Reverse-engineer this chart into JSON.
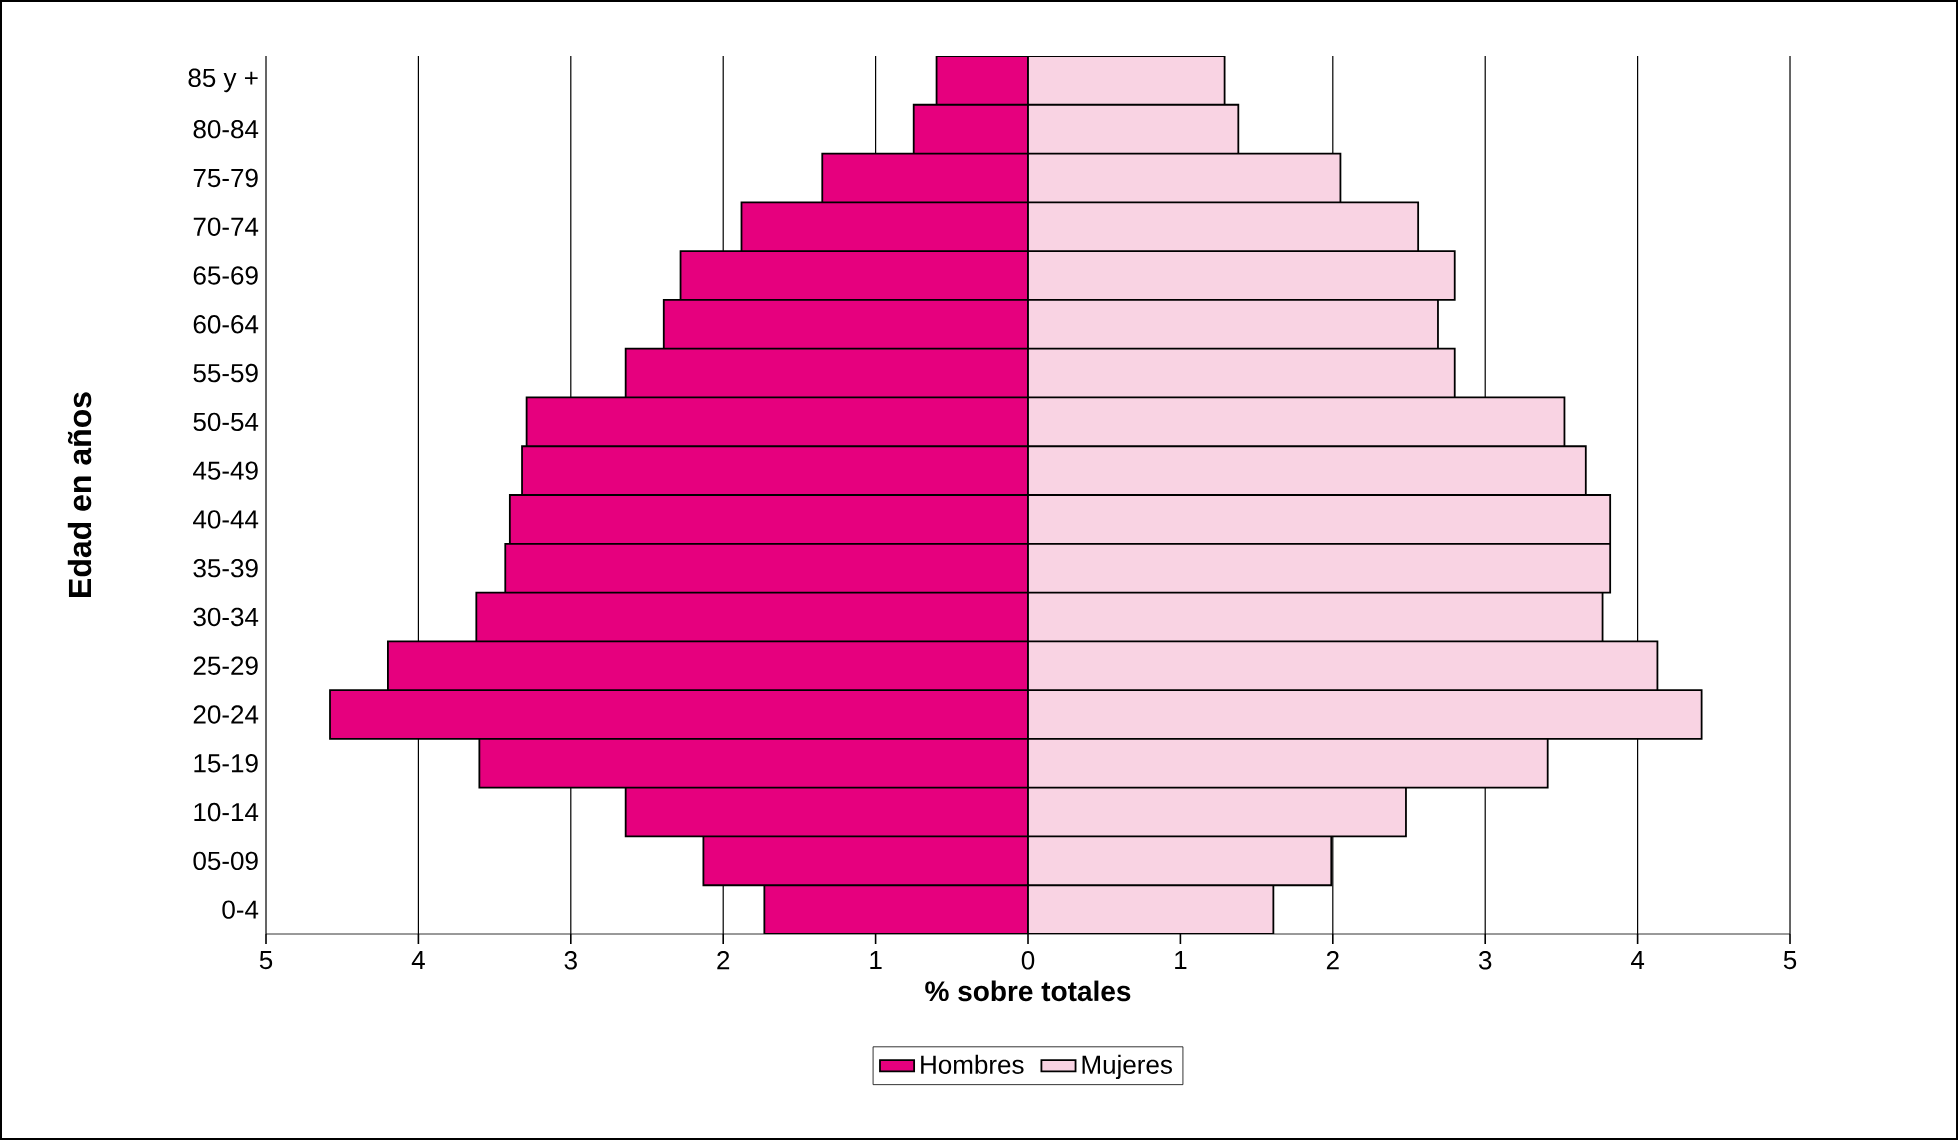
{
  "chart_data": {
    "type": "bar",
    "orientation": "horizontal",
    "ylabel": "Edad en años",
    "xlabel": "% sobre totales",
    "categories": [
      "85 y +",
      "80-84",
      "75-79",
      "70-74",
      "65-69",
      "60-64",
      "55-59",
      "50-54",
      "45-49",
      "40-44",
      "35-39",
      "30-34",
      "25-29",
      "20-24",
      "15-19",
      "10-14",
      "05-09",
      "0-4"
    ],
    "series": [
      {
        "name": "Hombres",
        "color": "#e6007e",
        "values": [
          -0.6,
          -0.75,
          -1.35,
          -1.88,
          -2.28,
          -2.39,
          -2.64,
          -3.29,
          -3.32,
          -3.4,
          -3.43,
          -3.62,
          -4.2,
          -4.58,
          -3.6,
          -2.64,
          -2.13,
          -1.73
        ]
      },
      {
        "name": "Mujeres",
        "color": "#f9d3e3",
        "values": [
          1.29,
          1.38,
          2.05,
          2.56,
          2.8,
          2.69,
          2.8,
          3.52,
          3.66,
          3.82,
          3.82,
          3.77,
          4.13,
          4.42,
          3.41,
          2.48,
          1.99,
          1.61
        ]
      }
    ],
    "xlim": [
      -5,
      5
    ],
    "xticks": [
      {
        "value": -5,
        "label": "5"
      },
      {
        "value": -4,
        "label": "4"
      },
      {
        "value": -3,
        "label": "3"
      },
      {
        "value": -2,
        "label": "2"
      },
      {
        "value": -1,
        "label": "1"
      },
      0,
      1,
      2,
      3,
      4,
      5
    ],
    "grid": "x",
    "legend": "bottom",
    "stacked": true
  }
}
